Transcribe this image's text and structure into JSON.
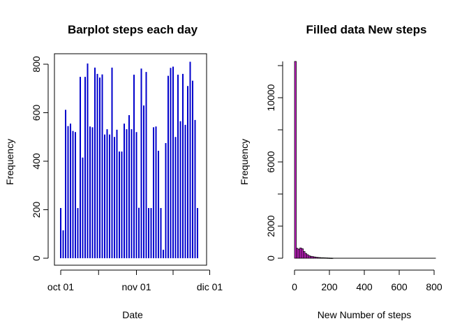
{
  "chart_data": [
    {
      "type": "bar",
      "title": "Barplot steps each day",
      "xlabel": "Date",
      "ylabel": "Frequency",
      "ylim": [
        0,
        820
      ],
      "yticks": [
        0,
        200,
        400,
        600,
        800
      ],
      "xticks": [
        {
          "label": "oct 01",
          "index": 0
        },
        {
          "label": "nov 01",
          "index": 31
        },
        {
          "label": "dic 01",
          "index": 61
        }
      ],
      "bar_color": "#0000cc",
      "values": [
        207,
        115,
        612,
        545,
        555,
        525,
        520,
        207,
        748,
        415,
        748,
        803,
        543,
        540,
        786,
        760,
        745,
        758,
        510,
        532,
        510,
        786,
        500,
        530,
        440,
        440,
        555,
        532,
        590,
        532,
        757,
        520,
        208,
        782,
        630,
        768,
        207,
        207,
        540,
        543,
        443,
        207,
        35,
        475,
        752,
        785,
        790,
        500,
        757,
        565,
        760,
        550,
        710,
        810,
        732,
        570,
        207
      ]
    },
    {
      "type": "bar",
      "title": "Filled data New steps",
      "xlabel": "New Number of steps",
      "ylabel": "Frequency",
      "xlim": [
        0,
        800
      ],
      "ylim": [
        0,
        12400
      ],
      "xticks": [
        0,
        200,
        400,
        600,
        800
      ],
      "yticks": [
        0,
        2000,
        6000,
        10000
      ],
      "bar_color": "#cc22cc",
      "bin_width": 10,
      "bins": [
        {
          "x0": 0,
          "x1": 10,
          "count": 12260
        },
        {
          "x0": 10,
          "x1": 20,
          "count": 620
        },
        {
          "x0": 20,
          "x1": 30,
          "count": 560
        },
        {
          "x0": 30,
          "x1": 40,
          "count": 640
        },
        {
          "x0": 40,
          "x1": 50,
          "count": 590
        },
        {
          "x0": 50,
          "x1": 60,
          "count": 420
        },
        {
          "x0": 60,
          "x1": 70,
          "count": 300
        },
        {
          "x0": 70,
          "x1": 80,
          "count": 220
        },
        {
          "x0": 80,
          "x1": 90,
          "count": 150
        },
        {
          "x0": 90,
          "x1": 100,
          "count": 120
        },
        {
          "x0": 100,
          "x1": 110,
          "count": 100
        },
        {
          "x0": 110,
          "x1": 120,
          "count": 80
        },
        {
          "x0": 120,
          "x1": 130,
          "count": 60
        },
        {
          "x0": 130,
          "x1": 140,
          "count": 50
        },
        {
          "x0": 140,
          "x1": 150,
          "count": 40
        },
        {
          "x0": 150,
          "x1": 160,
          "count": 30
        },
        {
          "x0": 160,
          "x1": 170,
          "count": 30
        },
        {
          "x0": 170,
          "x1": 180,
          "count": 25
        },
        {
          "x0": 180,
          "x1": 190,
          "count": 20
        },
        {
          "x0": 190,
          "x1": 200,
          "count": 15
        },
        {
          "x0": 200,
          "x1": 210,
          "count": 10
        },
        {
          "x0": 210,
          "x1": 220,
          "count": 8
        }
      ],
      "tail_range": [
        220,
        810
      ]
    }
  ]
}
